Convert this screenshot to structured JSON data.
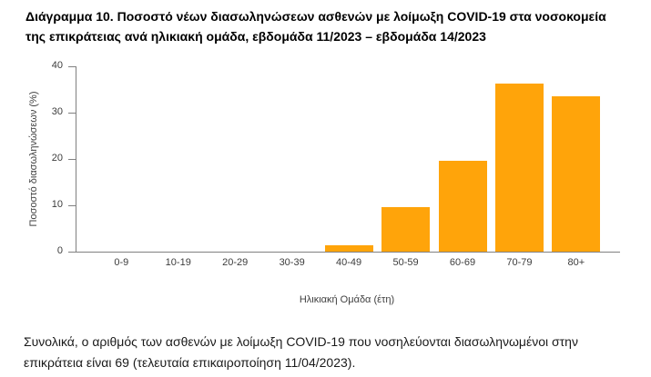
{
  "page": {
    "title_lines": [
      "Διάγραμμα 10. Ποσοστό νέων διασωληνώσεων ασθενών με λοίμωξη COVID-19 στα νοσοκομεία",
      "της επικράτειας ανά ηλικιακή ομάδα, εβδομάδα 11/2023 – εβδομάδα 14/2023"
    ],
    "note_lines": [
      "Συνολικά, ο αριθμός των ασθενών με λοίμωξη COVID-19 που νοσηλεύονται διασωληνωμένοι στην",
      "επικράτεια είναι 69 (τελευταία επικαιροποίηση 11/04/2023)."
    ]
  },
  "chart_data": {
    "type": "bar",
    "categories": [
      "0-9",
      "10-19",
      "20-29",
      "30-39",
      "40-49",
      "50-59",
      "60-69",
      "70-79",
      "80+"
    ],
    "values": [
      0,
      0,
      0,
      0,
      1.4,
      9.7,
      19.6,
      36.3,
      33.6
    ],
    "title": "",
    "xlabel": "Ηλικιακή Ομάδα (έτη)",
    "ylabel": "Ποσοστό διασωληνώσεων (%)",
    "ylim": [
      0,
      40
    ],
    "yticks": [
      0,
      10,
      20,
      30,
      40
    ],
    "grid": false,
    "legend": "none",
    "bar_color": "#FFA40A",
    "axis_color": "#808080"
  }
}
